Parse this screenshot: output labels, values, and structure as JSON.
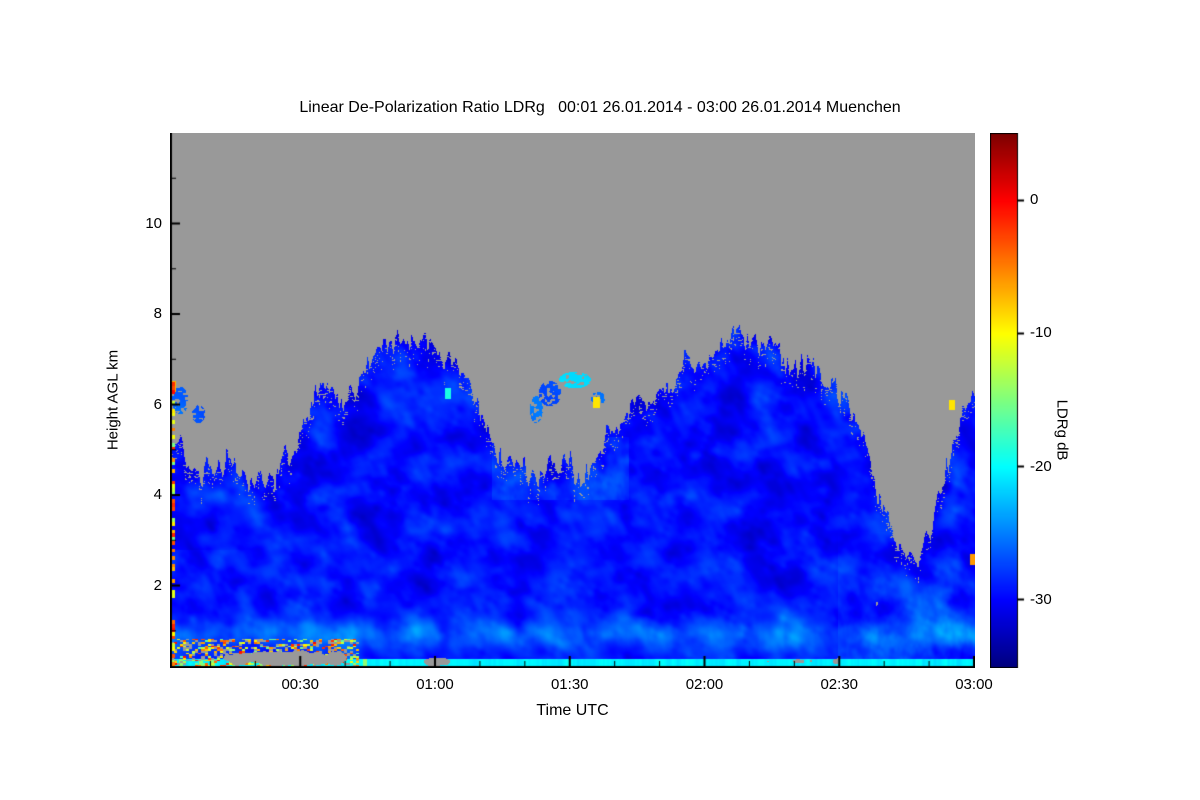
{
  "title": "Linear De-Polarization Ratio LDRg   00:01 26.01.2014 - 03:00 26.01.2014 Muenchen",
  "chart_data": {
    "type": "heatmap",
    "title": "Linear De-Polarization Ratio LDRg   00:01 26.01.2014 - 03:00 26.01.2014 Muenchen",
    "station": "Muenchen",
    "time_start": "00:01 26.01.2014",
    "time_end": "03:00 26.01.2014",
    "xlabel": "Time UTC",
    "ylabel": "Height AGL km",
    "colorbar_label": "LDRg dB",
    "x_range_minutes": [
      1,
      180
    ],
    "x_ticks": [
      {
        "label": "00:30",
        "minute": 30
      },
      {
        "label": "01:00",
        "minute": 60
      },
      {
        "label": "01:30",
        "minute": 90
      },
      {
        "label": "02:00",
        "minute": 120
      },
      {
        "label": "02:30",
        "minute": 150
      },
      {
        "label": "03:00",
        "minute": 180
      }
    ],
    "x_minor_step_min": 10,
    "y_range_km": [
      0.2,
      12.0
    ],
    "y_ticks": [
      2,
      4,
      6,
      8,
      10
    ],
    "y_minor_step_km": 1,
    "value_range_db": [
      -35,
      5
    ],
    "colorbar_ticks": [
      0,
      -10,
      -20,
      -30
    ],
    "colormap": "jet",
    "no_data_color": "#999999",
    "typical_cloud_value_db": -31,
    "cloud_top_profile": {
      "t": [
        0.0,
        0.02,
        0.04,
        0.07,
        0.1,
        0.13,
        0.155,
        0.18,
        0.2,
        0.225,
        0.25,
        0.27,
        0.295,
        0.32,
        0.345,
        0.37,
        0.4,
        0.43,
        0.46,
        0.49,
        0.515,
        0.545,
        0.57,
        0.6,
        0.625,
        0.65,
        0.675,
        0.7,
        0.72,
        0.745,
        0.77,
        0.795,
        0.82,
        0.845,
        0.865,
        0.885,
        0.905,
        0.925,
        0.945,
        0.965,
        0.985,
        1.0
      ],
      "height_km": [
        5.3,
        4.7,
        4.5,
        4.7,
        4.3,
        4.5,
        5.1,
        6.2,
        6.4,
        6.1,
        7.0,
        7.4,
        7.55,
        7.3,
        6.9,
        6.6,
        5.1,
        4.6,
        4.45,
        4.8,
        4.4,
        5.3,
        5.8,
        6.2,
        6.6,
        6.9,
        7.1,
        7.5,
        7.4,
        7.2,
        7.0,
        6.8,
        6.4,
        6.0,
        5.2,
        3.6,
        2.9,
        2.6,
        3.2,
        4.6,
        5.9,
        6.1
      ]
    },
    "surface_line": {
      "band_km": [
        0.24,
        0.4
      ],
      "value_db": -20.5
    },
    "ground_clutter": {
      "t_range": [
        0,
        0.235
      ],
      "height_range_km": [
        0.18,
        0.85
      ],
      "values_db": [
        -17,
        0
      ]
    },
    "gray_holes": [
      {
        "t0": 0.045,
        "t1": 0.24,
        "h0": 0.2,
        "h1": 0.62,
        "strength": 0.95,
        "seed": 11
      },
      {
        "t0": 0.305,
        "t1": 0.355,
        "h0": 0.2,
        "h1": 0.45,
        "strength": 0.85,
        "seed": 51
      },
      {
        "t0": 0.7,
        "t1": 0.845,
        "h0": 0.2,
        "h1": 0.5,
        "strength": 0.8,
        "seed": 23
      },
      {
        "t0": 0.85,
        "t1": 0.95,
        "h0": 1.2,
        "h1": 2.6,
        "strength": 0.55,
        "seed": 37
      }
    ],
    "detached_patches": [
      {
        "t": 0.472,
        "h": 6.25,
        "rt": 0.014,
        "rh": 0.28,
        "value_db": -27
      },
      {
        "t": 0.503,
        "h": 6.55,
        "rt": 0.02,
        "rh": 0.18,
        "value_db": -21.5
      },
      {
        "t": 0.532,
        "h": 6.15,
        "rt": 0.009,
        "rh": 0.14,
        "value_db": -26
      },
      {
        "t": 0.012,
        "h": 6.1,
        "rt": 0.01,
        "rh": 0.3,
        "value_db": -26
      },
      {
        "t": 0.035,
        "h": 5.8,
        "rt": 0.008,
        "rh": 0.2,
        "value_db": -27
      },
      {
        "t": 0.455,
        "h": 5.9,
        "rt": 0.008,
        "rh": 0.3,
        "value_db": -25
      }
    ],
    "specks": [
      {
        "t": 0.998,
        "h": 2.6,
        "value_db": -6
      },
      {
        "t": 0.972,
        "h": 6.0,
        "value_db": -9
      },
      {
        "t": 0.53,
        "h": 6.05,
        "value_db": -9
      },
      {
        "t": 0.345,
        "h": 6.25,
        "value_db": -19
      },
      {
        "t": 0.003,
        "h": 6.4,
        "value_db": -7
      }
    ]
  }
}
